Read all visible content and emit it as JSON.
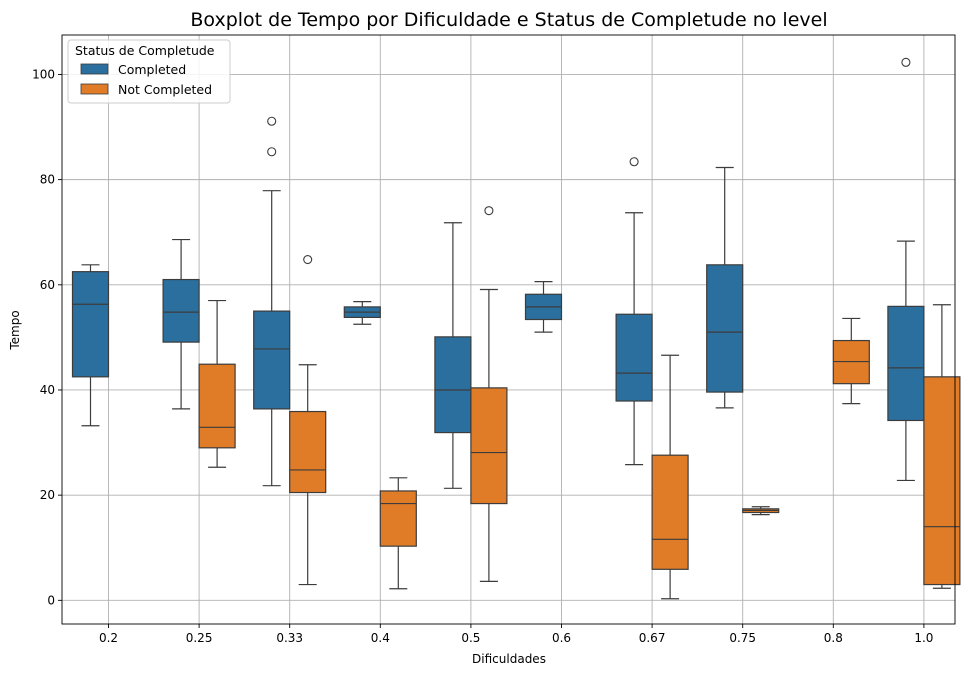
{
  "chart_data": {
    "type": "boxplot",
    "title": "Boxplot de Tempo por Dificuldade e Status de Completude no level",
    "xlabel": "Dificuldades",
    "ylabel": "Tempo",
    "categories": [
      "0.2",
      "0.25",
      "0.33",
      "0.4",
      "0.5",
      "0.6",
      "0.67",
      "0.75",
      "0.8",
      "1.0"
    ],
    "ylim": [
      -4.5,
      107.5
    ],
    "yticks": [
      0,
      20,
      40,
      60,
      80,
      100
    ],
    "grid": true,
    "legend": {
      "title": "Status de Completude",
      "placement": "top-left"
    },
    "series": [
      {
        "name": "Completed",
        "color": "#2a6f9e",
        "boxes": [
          {
            "category": "0.2",
            "min": 33.2,
            "q1": 42.5,
            "median": 56.3,
            "q3": 62.5,
            "max": 63.8,
            "outliers": []
          },
          {
            "category": "0.25",
            "min": 36.4,
            "q1": 49.1,
            "median": 54.8,
            "q3": 61.0,
            "max": 68.6,
            "outliers": []
          },
          {
            "category": "0.33",
            "min": 21.8,
            "q1": 36.4,
            "median": 47.8,
            "q3": 55.0,
            "max": 77.9,
            "outliers": [
              85.3,
              91.1
            ]
          },
          {
            "category": "0.4",
            "min": 52.5,
            "q1": 53.8,
            "median": 54.8,
            "q3": 55.8,
            "max": 56.8,
            "outliers": []
          },
          {
            "category": "0.5",
            "min": 21.3,
            "q1": 31.9,
            "median": 40.0,
            "q3": 50.1,
            "max": 71.8,
            "outliers": []
          },
          {
            "category": "0.6",
            "min": 51.0,
            "q1": 53.4,
            "median": 55.8,
            "q3": 58.2,
            "max": 60.6,
            "outliers": []
          },
          {
            "category": "0.67",
            "min": 25.8,
            "q1": 37.9,
            "median": 43.2,
            "q3": 54.4,
            "max": 73.7,
            "outliers": [
              83.4
            ]
          },
          {
            "category": "0.75",
            "min": 36.6,
            "q1": 39.6,
            "median": 51.0,
            "q3": 63.8,
            "max": 82.3,
            "outliers": []
          },
          {
            "category": "1.0",
            "min": 22.8,
            "q1": 34.2,
            "median": 44.2,
            "q3": 55.9,
            "max": 68.3,
            "outliers": [
              102.3
            ]
          }
        ]
      },
      {
        "name": "Not Completed",
        "color": "#e07b27",
        "boxes": [
          {
            "category": "0.25",
            "min": 25.3,
            "q1": 29.0,
            "median": 32.9,
            "q3": 44.9,
            "max": 57.0,
            "outliers": []
          },
          {
            "category": "0.33",
            "min": 3.0,
            "q1": 20.5,
            "median": 24.8,
            "q3": 35.9,
            "max": 44.8,
            "outliers": [
              64.8
            ]
          },
          {
            "category": "0.4",
            "min": 2.2,
            "q1": 10.3,
            "median": 18.4,
            "q3": 20.8,
            "max": 23.3,
            "outliers": []
          },
          {
            "category": "0.5",
            "min": 3.6,
            "q1": 18.4,
            "median": 28.1,
            "q3": 40.4,
            "max": 59.1,
            "outliers": [
              74.1
            ]
          },
          {
            "category": "0.67",
            "min": 0.3,
            "q1": 5.9,
            "median": 11.6,
            "q3": 27.6,
            "max": 46.6,
            "outliers": []
          },
          {
            "category": "0.75",
            "min": 16.3,
            "q1": 16.7,
            "median": 17.1,
            "q3": 17.4,
            "max": 17.8,
            "outliers": []
          },
          {
            "category": "0.8",
            "min": 37.4,
            "q1": 41.2,
            "median": 45.4,
            "q3": 49.4,
            "max": 53.6,
            "outliers": []
          },
          {
            "category": "1.0",
            "min": 2.3,
            "q1": 3.0,
            "median": 14.0,
            "q3": 42.5,
            "max": 56.2,
            "outliers": []
          }
        ]
      }
    ]
  }
}
